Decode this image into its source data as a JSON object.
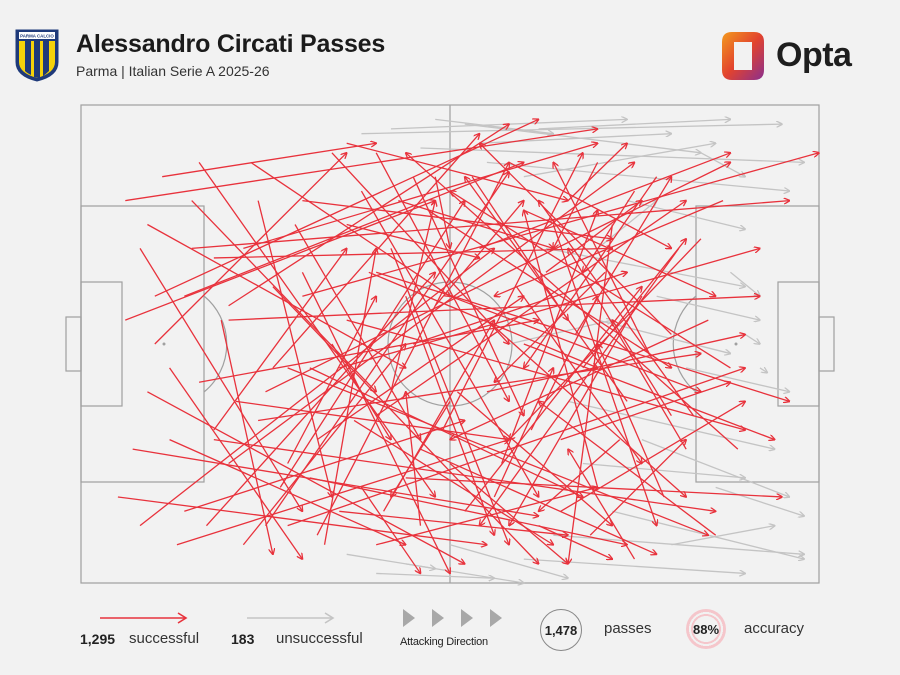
{
  "header": {
    "title": "Alessandro Circati Passes",
    "subtitle": "Parma | Italian Serie A 2025-26",
    "crest_text": "PARMA CALCIO",
    "brand": "Opta"
  },
  "colors": {
    "successful": "#e8323c",
    "unsuccessful": "#c4c4c4",
    "pitch_lines": "#a0a0a0",
    "background": "#f2f2f2",
    "crest_yellow": "#f5d20a",
    "crest_blue": "#1f3a7a"
  },
  "legend": {
    "successful_count": "1,295",
    "successful_label": "successful",
    "unsuccessful_count": "183",
    "unsuccessful_label": "unsuccessful",
    "direction_label": "Attacking Direction",
    "passes_value": "1,478",
    "passes_label": "passes",
    "accuracy_value": "88%",
    "accuracy_label": "accuracy"
  },
  "chart_data": {
    "type": "pass-map",
    "pitch": {
      "length": 100,
      "width": 100,
      "attacking_direction": "left-to-right"
    },
    "series": [
      {
        "name": "successful",
        "count": 1295
      },
      {
        "name": "unsuccessful",
        "count": 183
      }
    ],
    "total_passes": 1478,
    "accuracy_pct": 88,
    "sample_passes": {
      "successful": [
        [
          5,
          82,
          55,
          92
        ],
        [
          9,
          60,
          52,
          96
        ],
        [
          14,
          40,
          60,
          12
        ],
        [
          20,
          75,
          75,
          12
        ],
        [
          22,
          30,
          70,
          8
        ],
        [
          25,
          88,
          58,
          14
        ],
        [
          28,
          55,
          85,
          90
        ],
        [
          30,
          20,
          72,
          28
        ],
        [
          32,
          70,
          60,
          40
        ],
        [
          35,
          85,
          66,
          90
        ],
        [
          36,
          45,
          90,
          68
        ],
        [
          38,
          18,
          62,
          82
        ],
        [
          40,
          65,
          82,
          20
        ],
        [
          42,
          30,
          58,
          92
        ],
        [
          44,
          78,
          95,
          82
        ],
        [
          45,
          50,
          74,
          35
        ],
        [
          47,
          22,
          80,
          55
        ],
        [
          49,
          68,
          68,
          10
        ],
        [
          50,
          40,
          84,
          60
        ],
        [
          52,
          85,
          76,
          38
        ],
        [
          54,
          30,
          88,
          10
        ],
        [
          55,
          60,
          90,
          48
        ],
        [
          57,
          75,
          70,
          22
        ],
        [
          58,
          12,
          80,
          30
        ],
        [
          60,
          50,
          94,
          70
        ],
        [
          62,
          88,
          72,
          95
        ],
        [
          63,
          35,
          76,
          20
        ],
        [
          65,
          70,
          88,
          58
        ],
        [
          66,
          20,
          74,
          8
        ],
        [
          68,
          55,
          82,
          28
        ],
        [
          70,
          80,
          60,
          22
        ],
        [
          72,
          25,
          66,
          96
        ],
        [
          74,
          62,
          52,
          15
        ],
        [
          76,
          40,
          58,
          88
        ],
        [
          78,
          15,
          60,
          55
        ],
        [
          80,
          48,
          54,
          8
        ],
        [
          82,
          72,
          66,
          30
        ],
        [
          84,
          28,
          58,
          70
        ],
        [
          86,
          90,
          62,
          62
        ],
        [
          88,
          55,
          50,
          18
        ],
        [
          8,
          30,
          30,
          85
        ],
        [
          10,
          50,
          36,
          10
        ],
        [
          12,
          70,
          44,
          92
        ],
        [
          15,
          20,
          40,
          60
        ],
        [
          17,
          88,
          48,
          35
        ],
        [
          19,
          45,
          26,
          94
        ],
        [
          21,
          62,
          58,
          70
        ],
        [
          23,
          12,
          50,
          40
        ],
        [
          26,
          38,
          62,
          96
        ],
        [
          27,
          80,
          52,
          20
        ],
        [
          29,
          25,
          46,
          70
        ],
        [
          31,
          55,
          68,
          82
        ],
        [
          33,
          92,
          40,
          30
        ],
        [
          34,
          10,
          58,
          50
        ],
        [
          37,
          66,
          64,
          92
        ],
        [
          39,
          35,
          70,
          55
        ],
        [
          41,
          85,
          56,
          45
        ],
        [
          43,
          20,
          64,
          30
        ],
        [
          46,
          72,
          78,
          94
        ],
        [
          48,
          42,
          60,
          20
        ],
        [
          51,
          60,
          72,
          88
        ],
        [
          53,
          15,
          66,
          45
        ],
        [
          56,
          82,
          64,
          55
        ],
        [
          59,
          38,
          76,
          75
        ],
        [
          61,
          68,
          70,
          40
        ],
        [
          64,
          25,
          78,
          88
        ],
        [
          67,
          48,
          80,
          15
        ],
        [
          69,
          90,
          82,
          70
        ],
        [
          71,
          35,
          56,
          58
        ],
        [
          73,
          70,
          62,
          85
        ],
        [
          75,
          18,
          68,
          35
        ],
        [
          77,
          52,
          64,
          12
        ],
        [
          79,
          82,
          70,
          50
        ],
        [
          81,
          30,
          54,
          88
        ],
        [
          83,
          65,
          62,
          20
        ],
        [
          85,
          45,
          50,
          70
        ],
        [
          87,
          20,
          56,
          40
        ],
        [
          89,
          72,
          44,
          10
        ],
        [
          6,
          45,
          48,
          20
        ],
        [
          7,
          72,
          62,
          86
        ],
        [
          11,
          15,
          40,
          8
        ],
        [
          13,
          92,
          58,
          70
        ],
        [
          16,
          58,
          62,
          45
        ],
        [
          18,
          32,
          72,
          30
        ],
        [
          24,
          66,
          84,
          52
        ],
        [
          31,
          78,
          74,
          92
        ],
        [
          36,
          8,
          66,
          20
        ],
        [
          40,
          92,
          70,
          80
        ],
        [
          45,
          15,
          60,
          65
        ],
        [
          50,
          75,
          66,
          96
        ],
        [
          55,
          45,
          82,
          82
        ],
        [
          60,
          22,
          86,
          40
        ],
        [
          65,
          85,
          90,
          62
        ],
        [
          70,
          12,
          64,
          30
        ],
        [
          75,
          95,
          66,
          72
        ],
        [
          80,
          65,
          72,
          45
        ],
        [
          6,
          20,
          70,
          5
        ],
        [
          10,
          40,
          62,
          3
        ],
        [
          8,
          88,
          56,
          30
        ],
        [
          9,
          25,
          44,
          55
        ],
        [
          12,
          55,
          30,
          95
        ],
        [
          14,
          85,
          52,
          66
        ],
        [
          16,
          12,
          48,
          82
        ],
        [
          18,
          68,
          36,
          30
        ],
        [
          20,
          42,
          58,
          4
        ],
        [
          22,
          92,
          44,
          50
        ],
        [
          24,
          20,
          34,
          82
        ],
        [
          26,
          55,
          54,
          6
        ],
        [
          28,
          75,
          40,
          40
        ],
        [
          30,
          35,
          50,
          98
        ],
        [
          32,
          90,
          58,
          12
        ],
        [
          34,
          50,
          42,
          70
        ],
        [
          36,
          25,
          54,
          32
        ],
        [
          38,
          80,
          46,
          98
        ],
        [
          40,
          10,
          58,
          62
        ],
        [
          42,
          60,
          48,
          20
        ],
        [
          44,
          40,
          56,
          90
        ],
        [
          46,
          88,
          44,
          60
        ],
        [
          48,
          15,
          50,
          30
        ],
        [
          50,
          62,
          42,
          82
        ],
        [
          25,
          60,
          88,
          12
        ],
        [
          20,
          45,
          92,
          40
        ],
        [
          15,
          30,
          96,
          20
        ],
        [
          30,
          40,
          100,
          10
        ],
        [
          35,
          55,
          92,
          30
        ],
        [
          40,
          35,
          96,
          62
        ],
        [
          18,
          70,
          86,
          85
        ],
        [
          28,
          88,
          90,
          55
        ]
      ],
      "unsuccessful": [
        [
          38,
          6,
          95,
          4
        ],
        [
          46,
          9,
          98,
          12
        ],
        [
          52,
          4,
          84,
          10
        ],
        [
          55,
          12,
          96,
          18
        ],
        [
          60,
          15,
          86,
          8
        ],
        [
          63,
          30,
          90,
          38
        ],
        [
          66,
          62,
          94,
          72
        ],
        [
          70,
          45,
          88,
          52
        ],
        [
          72,
          85,
          98,
          95
        ],
        [
          74,
          20,
          90,
          26
        ],
        [
          76,
          70,
          96,
          82
        ],
        [
          78,
          40,
          92,
          45
        ],
        [
          80,
          92,
          94,
          88
        ],
        [
          82,
          55,
          96,
          60
        ],
        [
          84,
          10,
          90,
          15
        ],
        [
          86,
          80,
          98,
          86
        ],
        [
          60,
          95,
          90,
          98
        ],
        [
          64,
          90,
          98,
          94
        ],
        [
          68,
          75,
          90,
          78
        ],
        [
          88,
          35,
          92,
          40
        ],
        [
          90,
          48,
          92,
          50
        ],
        [
          92,
          55,
          93,
          56
        ],
        [
          70,
          30,
          78,
          20
        ],
        [
          58,
          50,
          72,
          45
        ],
        [
          50,
          92,
          66,
          99
        ],
        [
          44,
          96,
          60,
          100
        ],
        [
          40,
          98,
          56,
          99
        ],
        [
          36,
          94,
          48,
          97
        ],
        [
          42,
          5,
          74,
          3
        ],
        [
          48,
          3,
          64,
          6
        ],
        [
          54,
          8,
          80,
          6
        ],
        [
          62,
          5,
          88,
          3
        ]
      ]
    }
  }
}
